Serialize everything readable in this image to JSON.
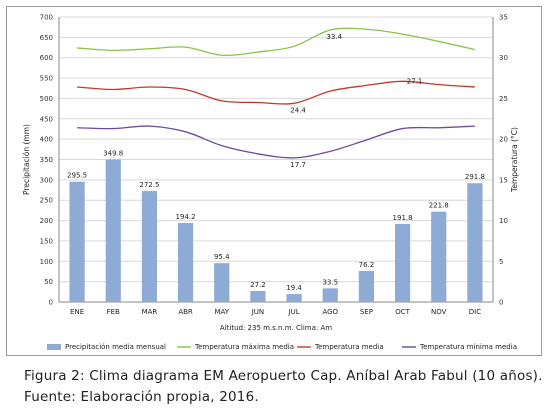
{
  "chart_data": {
    "type": "bar+line",
    "categories": [
      "ENE",
      "FEB",
      "MAR",
      "ABR",
      "MAY",
      "JUN",
      "JUL",
      "AGO",
      "SEP",
      "OCT",
      "NOV",
      "DIC"
    ],
    "bar_series": {
      "name": "Precipitación media mensual",
      "values": [
        295.5,
        349.8,
        272.5,
        194.2,
        95.4,
        27.2,
        19.4,
        33.5,
        76.2,
        191.8,
        221.8,
        291.8
      ],
      "labels": [
        "295.5",
        "349.8",
        "272.5",
        "194.2",
        "95.4",
        "27.2",
        "19.4",
        "33.5",
        "76.2",
        "191.8",
        "221.8",
        "291.8"
      ],
      "color": "#8eabd6"
    },
    "line_series": [
      {
        "name": "Temperatura máxima media",
        "color": "#8bc34a",
        "values": [
          31.2,
          30.9,
          31.1,
          31.3,
          30.3,
          30.7,
          31.4,
          33.4,
          33.5,
          32.9,
          32.0,
          31.0
        ],
        "label_index": 7,
        "label": "33.4"
      },
      {
        "name": "Temperatura media",
        "color": "#c0392b",
        "values": [
          26.4,
          26.1,
          26.4,
          26.1,
          24.7,
          24.5,
          24.4,
          25.9,
          26.6,
          27.1,
          26.7,
          26.4
        ],
        "label_index": 6,
        "label": "24.4"
      },
      {
        "name": "Temperatura mínima media",
        "color": "#6a4c9c",
        "values": [
          21.4,
          21.3,
          21.6,
          20.9,
          19.2,
          18.2,
          17.7,
          18.5,
          19.9,
          21.3,
          21.4,
          21.6
        ],
        "label_index": 6,
        "label": "17.7"
      }
    ],
    "y_left": {
      "label": "Precipitación (mm)",
      "min": 0,
      "max": 700,
      "step": 50
    },
    "y_right": {
      "label": "Temperatura (°C)",
      "min": 0,
      "max": 35,
      "step": 5
    },
    "extra_labels": [
      {
        "series": 1,
        "index": 9,
        "label": "27.1"
      }
    ],
    "footer": "Altitud: 235 m.s.n.m.     Clima: Am",
    "legend_position": "bottom",
    "grid": "horizontal"
  },
  "caption": {
    "line1": "Figura 2: Clima diagrama EM Aeropuerto Cap. Aníbal Arab Fabul (10 años).",
    "line2": "Fuente: Elaboración propia, 2016."
  }
}
